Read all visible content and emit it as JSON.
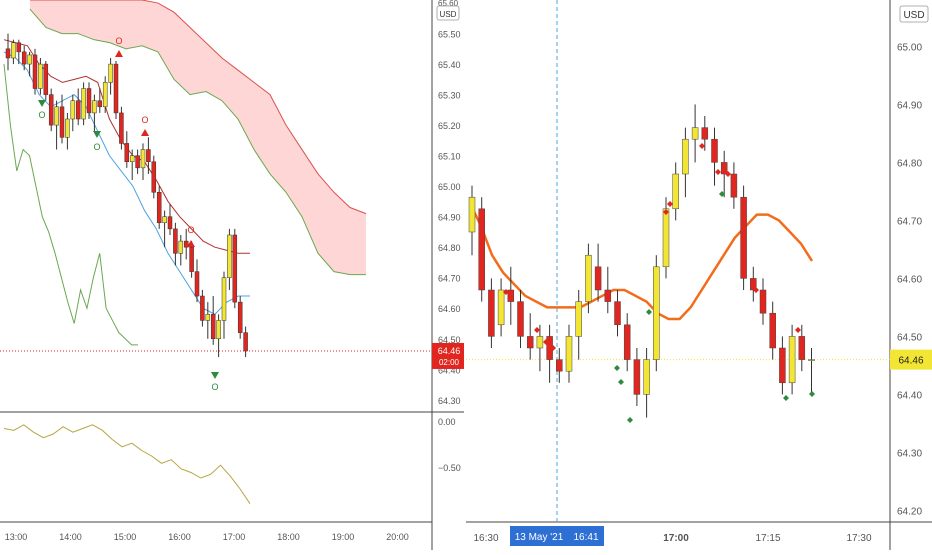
{
  "colors": {
    "up": "#f2e533",
    "down": "#e0261f",
    "cloud": "#ffd6d6",
    "cloud_line": "#d9534f",
    "green_line": "#6aa84f",
    "blue_line": "#4fa3e0",
    "ma": "#f26c1a",
    "osc": "#b5a642",
    "price_line": "#e0261f",
    "hline_yellow": "#f2e533",
    "axis_text": "#555555",
    "badge_bg": "#2e6fd3"
  },
  "left": {
    "currency": "USD",
    "price_badge": "64.46",
    "countdown": "02:00",
    "osc_ticks": [
      "0.00",
      "−0.50"
    ],
    "chart_data": {
      "type": "candlestick",
      "title": "",
      "x_ticks": [
        "13:00",
        "14:00",
        "15:00",
        "16:00",
        "17:00",
        "18:00",
        "19:00",
        "20:00"
      ],
      "y_ticks": [
        "65.50",
        "65.40",
        "65.30",
        "65.20",
        "65.10",
        "65.00",
        "64.90",
        "64.80",
        "64.70",
        "64.60",
        "64.50",
        "64.40",
        "64.30"
      ],
      "y_top_label": "65.60",
      "ylim": [
        64.26,
        65.61
      ],
      "last_price": 64.46,
      "candles": [
        [
          65.45,
          65.5,
          65.38,
          65.42
        ],
        [
          65.42,
          65.48,
          65.4,
          65.47
        ],
        [
          65.47,
          65.48,
          65.4,
          65.44
        ],
        [
          65.44,
          65.46,
          65.38,
          65.4
        ],
        [
          65.4,
          65.44,
          65.36,
          65.43
        ],
        [
          65.43,
          65.45,
          65.3,
          65.32
        ],
        [
          65.32,
          65.42,
          65.3,
          65.4
        ],
        [
          65.4,
          65.41,
          65.28,
          65.3
        ],
        [
          65.3,
          65.32,
          65.18,
          65.2
        ],
        [
          65.2,
          65.28,
          65.12,
          65.26
        ],
        [
          65.26,
          65.3,
          65.14,
          65.16
        ],
        [
          65.16,
          65.24,
          65.12,
          65.22
        ],
        [
          65.22,
          65.3,
          65.18,
          65.28
        ],
        [
          65.28,
          65.32,
          65.2,
          65.22
        ],
        [
          65.22,
          65.34,
          65.2,
          65.32
        ],
        [
          65.32,
          65.34,
          65.22,
          65.24
        ],
        [
          65.24,
          65.3,
          65.18,
          65.28
        ],
        [
          65.28,
          65.32,
          65.24,
          65.26
        ],
        [
          65.26,
          65.36,
          65.24,
          65.34
        ],
        [
          65.34,
          65.42,
          65.3,
          65.4
        ],
        [
          65.4,
          65.41,
          65.22,
          65.24
        ],
        [
          65.24,
          65.26,
          65.12,
          65.14
        ],
        [
          65.14,
          65.18,
          65.06,
          65.08
        ],
        [
          65.08,
          65.12,
          65.02,
          65.1
        ],
        [
          65.1,
          65.12,
          65.04,
          65.06
        ],
        [
          65.06,
          65.14,
          65.02,
          65.12
        ],
        [
          65.12,
          65.16,
          65.04,
          65.08
        ],
        [
          65.08,
          65.1,
          64.96,
          64.98
        ],
        [
          64.98,
          65.0,
          64.86,
          64.88
        ],
        [
          64.88,
          64.92,
          64.8,
          64.9
        ],
        [
          64.9,
          64.94,
          64.84,
          64.86
        ],
        [
          64.86,
          64.88,
          64.74,
          64.78
        ],
        [
          64.78,
          64.84,
          64.74,
          64.82
        ],
        [
          64.82,
          64.86,
          64.76,
          64.8
        ],
        [
          64.8,
          64.82,
          64.7,
          64.72
        ],
        [
          64.72,
          64.76,
          64.62,
          64.64
        ],
        [
          64.64,
          64.66,
          64.54,
          64.56
        ],
        [
          64.56,
          64.62,
          64.5,
          64.58
        ],
        [
          64.58,
          64.64,
          64.48,
          64.5
        ],
        [
          64.5,
          64.58,
          64.44,
          64.56
        ],
        [
          64.56,
          64.72,
          64.5,
          64.7
        ],
        [
          64.7,
          64.86,
          64.66,
          64.84
        ],
        [
          64.84,
          64.86,
          64.6,
          64.62
        ],
        [
          64.62,
          64.64,
          64.5,
          64.52
        ],
        [
          64.52,
          64.54,
          64.44,
          64.46
        ]
      ],
      "cloud_top": [
        65.61,
        65.61,
        65.61,
        65.61,
        65.61,
        65.61,
        65.61,
        65.61,
        65.6,
        65.57,
        65.52,
        65.47,
        65.42,
        65.38,
        65.34,
        65.3,
        65.2,
        65.12,
        65.04,
        64.98,
        64.93,
        64.91
      ],
      "cloud_bottom": [
        65.58,
        65.52,
        65.5,
        65.5,
        65.48,
        65.47,
        65.45,
        65.46,
        65.44,
        65.35,
        65.3,
        65.31,
        65.28,
        65.22,
        65.12,
        65.04,
        64.98,
        64.9,
        64.78,
        64.72,
        64.71,
        64.71
      ],
      "red_line": [
        65.48,
        65.47,
        65.46,
        65.4,
        65.36,
        65.34,
        65.35,
        65.36,
        65.34,
        65.22,
        65.15,
        65.1,
        65.08,
        65.02,
        64.95,
        64.9,
        64.86,
        64.82,
        64.8,
        64.79,
        64.78,
        64.78
      ],
      "blue_line": [
        65.44,
        65.42,
        65.38,
        65.3,
        65.26,
        65.28,
        65.3,
        65.26,
        65.18,
        65.1,
        65.05,
        65.0,
        64.92,
        64.86,
        64.78,
        64.72,
        64.66,
        64.6,
        64.58,
        64.62,
        64.64,
        64.64
      ],
      "green_lower": [
        65.4,
        65.2,
        65.05,
        65.12,
        65.1,
        65.0,
        64.9,
        64.85,
        64.78,
        64.7,
        64.62,
        64.55,
        64.66,
        64.6,
        64.7,
        64.78,
        64.6,
        64.56,
        64.52,
        64.5,
        64.48,
        64.48
      ],
      "osc_values": [
        -0.08,
        -0.1,
        -0.04,
        -0.12,
        -0.18,
        -0.14,
        -0.06,
        -0.12,
        -0.08,
        -0.04,
        -0.1,
        -0.2,
        -0.28,
        -0.24,
        -0.32,
        -0.38,
        -0.46,
        -0.42,
        -0.52,
        -0.56,
        -0.62,
        -0.58,
        -0.48,
        -0.6,
        -0.74,
        -0.9
      ],
      "osc_ylim": [
        -1.1,
        0.1
      ],
      "markers_text": [
        "O",
        "O",
        "O",
        "O",
        "O",
        "O",
        "O"
      ]
    }
  },
  "right": {
    "currency": "USD",
    "price_badge": "64.46",
    "crosshair_date": "13 May '21",
    "crosshair_time": "16:41",
    "chart_data": {
      "type": "candlestick",
      "title": "",
      "x_ticks": [
        "16:30",
        "17:00",
        "17:15",
        "17:30"
      ],
      "y_ticks": [
        "65.00",
        "64.90",
        "64.80",
        "64.70",
        "64.60",
        "64.50",
        "64.40",
        "64.30",
        "64.20"
      ],
      "ylim": [
        64.18,
        65.08
      ],
      "last_price": 64.46,
      "candles": [
        [
          64.68,
          64.76,
          64.64,
          64.74
        ],
        [
          64.72,
          64.74,
          64.56,
          64.58
        ],
        [
          64.58,
          64.6,
          64.48,
          64.5
        ],
        [
          64.52,
          64.6,
          64.5,
          64.58
        ],
        [
          64.58,
          64.62,
          64.52,
          64.56
        ],
        [
          64.56,
          64.58,
          64.48,
          64.5
        ],
        [
          64.5,
          64.54,
          64.46,
          64.48
        ],
        [
          64.48,
          64.52,
          64.44,
          64.5
        ],
        [
          64.5,
          64.52,
          64.42,
          64.46
        ],
        [
          64.46,
          64.48,
          64.42,
          64.44
        ],
        [
          64.44,
          64.52,
          64.42,
          64.5
        ],
        [
          64.5,
          64.58,
          64.46,
          64.56
        ],
        [
          64.56,
          64.66,
          64.54,
          64.64
        ],
        [
          64.62,
          64.66,
          64.56,
          64.58
        ],
        [
          64.58,
          64.62,
          64.54,
          64.56
        ],
        [
          64.56,
          64.58,
          64.5,
          64.52
        ],
        [
          64.52,
          64.54,
          64.44,
          64.46
        ],
        [
          64.46,
          64.48,
          64.38,
          64.4
        ],
        [
          64.4,
          64.48,
          64.36,
          64.46
        ],
        [
          64.46,
          64.64,
          64.44,
          64.62
        ],
        [
          64.62,
          64.74,
          64.6,
          64.72
        ],
        [
          64.72,
          64.8,
          64.7,
          64.78
        ],
        [
          64.78,
          64.86,
          64.74,
          64.84
        ],
        [
          64.84,
          64.9,
          64.8,
          64.86
        ],
        [
          64.86,
          64.88,
          64.82,
          64.84
        ],
        [
          64.84,
          64.86,
          64.76,
          64.8
        ],
        [
          64.8,
          64.82,
          64.74,
          64.78
        ],
        [
          64.78,
          64.8,
          64.72,
          64.74
        ],
        [
          64.74,
          64.76,
          64.58,
          64.6
        ],
        [
          64.6,
          64.62,
          64.56,
          64.58
        ],
        [
          64.58,
          64.6,
          64.52,
          64.54
        ],
        [
          64.54,
          64.56,
          64.46,
          64.48
        ],
        [
          64.48,
          64.5,
          64.4,
          64.42
        ],
        [
          64.42,
          64.52,
          64.4,
          64.5
        ],
        [
          64.5,
          64.52,
          64.44,
          64.46
        ],
        [
          64.46,
          64.48,
          64.4,
          64.46
        ]
      ],
      "ma_line": [
        64.73,
        64.69,
        64.64,
        64.61,
        64.59,
        64.57,
        64.56,
        64.55,
        64.55,
        64.55,
        64.55,
        64.56,
        64.57,
        64.58,
        64.58,
        64.57,
        64.56,
        64.54,
        64.53,
        64.53,
        64.55,
        64.58,
        64.61,
        64.64,
        64.67,
        64.69,
        64.71,
        64.71,
        64.7,
        64.68,
        64.66,
        64.63
      ],
      "ticks_style": "right axis"
    }
  }
}
